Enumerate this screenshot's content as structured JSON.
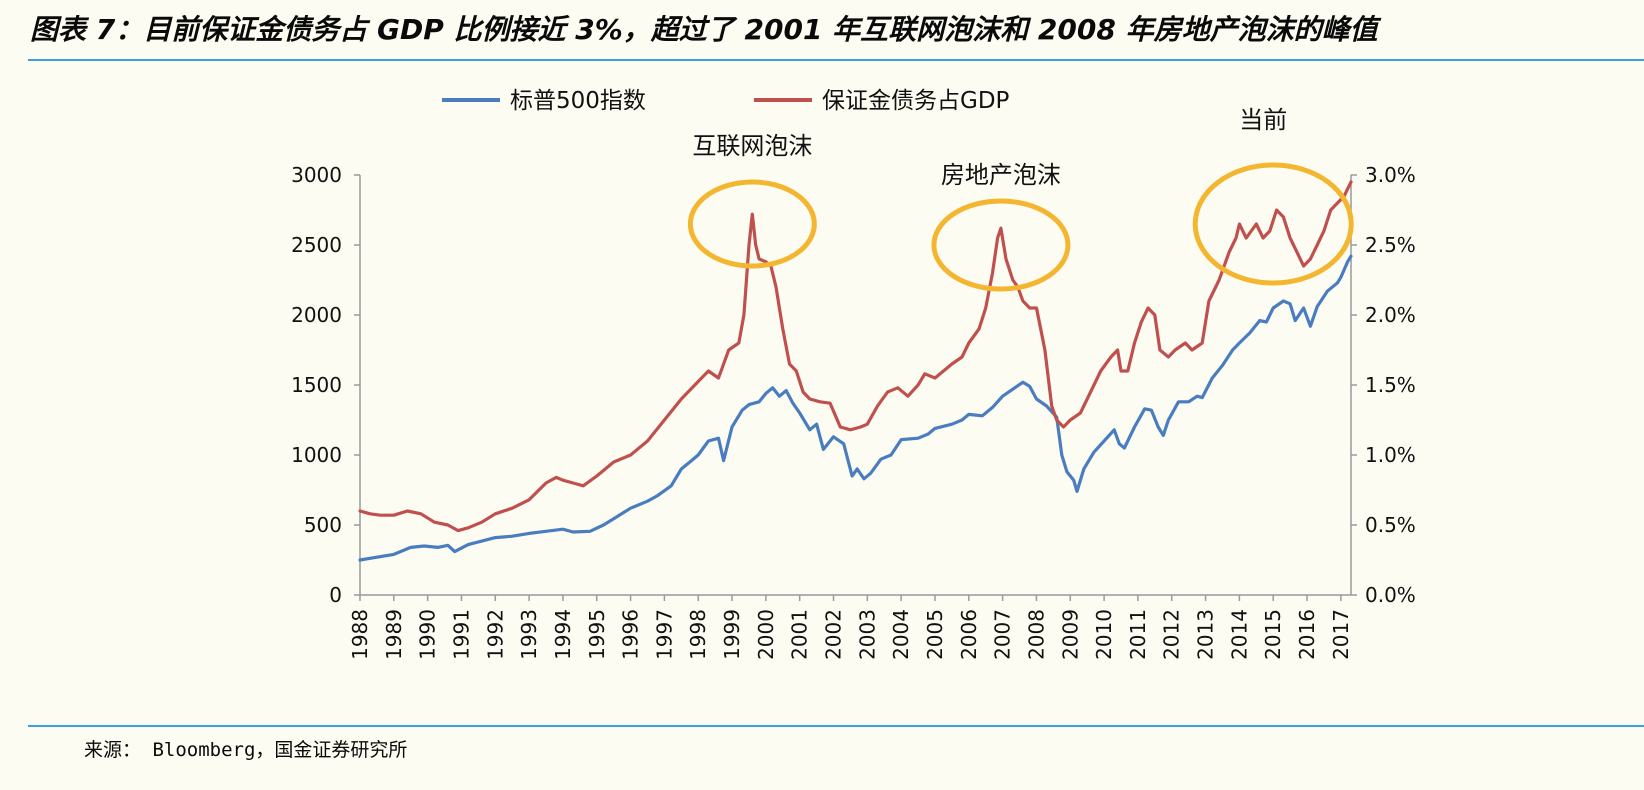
{
  "figure": {
    "title": "图表 7：目前保证金债务占 GDP 比例接近 3%，超过了 2001 年互联网泡沫和 2008 年房地产泡沫的峰值",
    "source": "来源： Bloomberg，国金证券研究所"
  },
  "colors": {
    "sp500": "#4a7dc0",
    "margin": "#c0504d",
    "highlight_ring": "#f4b630",
    "rule": "#3fa0d8",
    "axis": "#9a9a9a",
    "background": "#fdfcf2"
  },
  "chart_data": {
    "type": "line",
    "title": "",
    "xlabel": "",
    "ylabel_left": "",
    "ylabel_right": "",
    "ylim_left": [
      0,
      3000
    ],
    "ylim_right": [
      0,
      0.03
    ],
    "xlim": [
      1988,
      2017.3
    ],
    "left_ticks": [
      "0",
      "500",
      "1000",
      "1500",
      "2000",
      "2500",
      "3000"
    ],
    "right_ticks": [
      "0.0%",
      "0.5%",
      "1.0%",
      "1.5%",
      "2.0%",
      "2.5%",
      "3.0%"
    ],
    "x_ticks": [
      "1988",
      "1989",
      "1990",
      "1991",
      "1992",
      "1993",
      "1994",
      "1995",
      "1996",
      "1997",
      "1998",
      "1999",
      "2000",
      "2001",
      "2002",
      "2003",
      "2004",
      "2005",
      "2006",
      "2007",
      "2008",
      "2009",
      "2010",
      "2011",
      "2012",
      "2013",
      "2014",
      "2015",
      "2016",
      "2017"
    ],
    "legend_position": "top",
    "grid": false,
    "series": [
      {
        "name": "标普500指数",
        "axis": "left",
        "points": [
          [
            1988.0,
            250
          ],
          [
            1988.5,
            270
          ],
          [
            1989.0,
            290
          ],
          [
            1989.5,
            340
          ],
          [
            1989.9,
            350
          ],
          [
            1990.3,
            340
          ],
          [
            1990.6,
            355
          ],
          [
            1990.8,
            310
          ],
          [
            1991.2,
            360
          ],
          [
            1991.6,
            385
          ],
          [
            1992.0,
            410
          ],
          [
            1992.5,
            420
          ],
          [
            1993.0,
            440
          ],
          [
            1993.5,
            455
          ],
          [
            1994.0,
            470
          ],
          [
            1994.3,
            450
          ],
          [
            1994.8,
            455
          ],
          [
            1995.2,
            500
          ],
          [
            1995.6,
            560
          ],
          [
            1996.0,
            620
          ],
          [
            1996.5,
            670
          ],
          [
            1996.8,
            710
          ],
          [
            1997.2,
            780
          ],
          [
            1997.5,
            900
          ],
          [
            1997.8,
            960
          ],
          [
            1998.0,
            1000
          ],
          [
            1998.3,
            1100
          ],
          [
            1998.6,
            1120
          ],
          [
            1998.75,
            960
          ],
          [
            1999.0,
            1200
          ],
          [
            1999.3,
            1320
          ],
          [
            1999.5,
            1360
          ],
          [
            1999.8,
            1380
          ],
          [
            2000.0,
            1440
          ],
          [
            2000.2,
            1480
          ],
          [
            2000.4,
            1420
          ],
          [
            2000.6,
            1460
          ],
          [
            2000.8,
            1370
          ],
          [
            2001.0,
            1300
          ],
          [
            2001.3,
            1180
          ],
          [
            2001.5,
            1220
          ],
          [
            2001.7,
            1040
          ],
          [
            2002.0,
            1130
          ],
          [
            2002.3,
            1080
          ],
          [
            2002.55,
            850
          ],
          [
            2002.7,
            900
          ],
          [
            2002.9,
            830
          ],
          [
            2003.1,
            870
          ],
          [
            2003.4,
            970
          ],
          [
            2003.7,
            1000
          ],
          [
            2004.0,
            1110
          ],
          [
            2004.5,
            1120
          ],
          [
            2004.8,
            1150
          ],
          [
            2005.0,
            1190
          ],
          [
            2005.5,
            1220
          ],
          [
            2005.8,
            1250
          ],
          [
            2006.0,
            1290
          ],
          [
            2006.4,
            1280
          ],
          [
            2006.7,
            1340
          ],
          [
            2007.0,
            1420
          ],
          [
            2007.3,
            1470
          ],
          [
            2007.6,
            1520
          ],
          [
            2007.8,
            1490
          ],
          [
            2008.0,
            1400
          ],
          [
            2008.3,
            1350
          ],
          [
            2008.6,
            1270
          ],
          [
            2008.75,
            1000
          ],
          [
            2008.9,
            880
          ],
          [
            2009.1,
            820
          ],
          [
            2009.2,
            740
          ],
          [
            2009.4,
            900
          ],
          [
            2009.7,
            1020
          ],
          [
            2010.0,
            1100
          ],
          [
            2010.3,
            1180
          ],
          [
            2010.45,
            1080
          ],
          [
            2010.6,
            1050
          ],
          [
            2010.9,
            1200
          ],
          [
            2011.2,
            1330
          ],
          [
            2011.4,
            1320
          ],
          [
            2011.6,
            1200
          ],
          [
            2011.75,
            1140
          ],
          [
            2011.9,
            1250
          ],
          [
            2012.2,
            1380
          ],
          [
            2012.5,
            1380
          ],
          [
            2012.75,
            1420
          ],
          [
            2012.9,
            1410
          ],
          [
            2013.2,
            1550
          ],
          [
            2013.5,
            1640
          ],
          [
            2013.8,
            1750
          ],
          [
            2014.0,
            1800
          ],
          [
            2014.3,
            1870
          ],
          [
            2014.6,
            1960
          ],
          [
            2014.8,
            1950
          ],
          [
            2015.0,
            2050
          ],
          [
            2015.3,
            2100
          ],
          [
            2015.5,
            2080
          ],
          [
            2015.65,
            1960
          ],
          [
            2015.9,
            2050
          ],
          [
            2016.1,
            1920
          ],
          [
            2016.3,
            2060
          ],
          [
            2016.6,
            2170
          ],
          [
            2016.9,
            2230
          ],
          [
            2017.0,
            2270
          ],
          [
            2017.2,
            2380
          ],
          [
            2017.3,
            2420
          ]
        ]
      },
      {
        "name": "保证金债务占GDP",
        "axis": "right",
        "points": [
          [
            1988.0,
            0.006
          ],
          [
            1988.3,
            0.0058
          ],
          [
            1988.6,
            0.0057
          ],
          [
            1989.0,
            0.0057
          ],
          [
            1989.4,
            0.006
          ],
          [
            1989.8,
            0.0058
          ],
          [
            1990.2,
            0.0052
          ],
          [
            1990.6,
            0.005
          ],
          [
            1990.9,
            0.0046
          ],
          [
            1991.2,
            0.0048
          ],
          [
            1991.6,
            0.0052
          ],
          [
            1992.0,
            0.0058
          ],
          [
            1992.5,
            0.0062
          ],
          [
            1993.0,
            0.0068
          ],
          [
            1993.5,
            0.008
          ],
          [
            1993.8,
            0.0084
          ],
          [
            1994.0,
            0.0082
          ],
          [
            1994.3,
            0.008
          ],
          [
            1994.6,
            0.0078
          ],
          [
            1995.0,
            0.0085
          ],
          [
            1995.5,
            0.0095
          ],
          [
            1996.0,
            0.01
          ],
          [
            1996.5,
            0.011
          ],
          [
            1997.0,
            0.0125
          ],
          [
            1997.5,
            0.014
          ],
          [
            1997.9,
            0.015
          ],
          [
            1998.3,
            0.016
          ],
          [
            1998.6,
            0.0155
          ],
          [
            1998.9,
            0.0175
          ],
          [
            1999.2,
            0.018
          ],
          [
            1999.35,
            0.02
          ],
          [
            1999.5,
            0.025
          ],
          [
            1999.6,
            0.0272
          ],
          [
            1999.7,
            0.025
          ],
          [
            1999.8,
            0.024
          ],
          [
            2000.0,
            0.0238
          ],
          [
            2000.15,
            0.0235
          ],
          [
            2000.3,
            0.022
          ],
          [
            2000.5,
            0.019
          ],
          [
            2000.7,
            0.0165
          ],
          [
            2000.9,
            0.016
          ],
          [
            2001.1,
            0.0145
          ],
          [
            2001.3,
            0.014
          ],
          [
            2001.6,
            0.0138
          ],
          [
            2001.9,
            0.0137
          ],
          [
            2002.2,
            0.012
          ],
          [
            2002.5,
            0.0118
          ],
          [
            2002.8,
            0.012
          ],
          [
            2003.0,
            0.0122
          ],
          [
            2003.3,
            0.0135
          ],
          [
            2003.6,
            0.0145
          ],
          [
            2003.9,
            0.0148
          ],
          [
            2004.2,
            0.0142
          ],
          [
            2004.5,
            0.015
          ],
          [
            2004.7,
            0.0158
          ],
          [
            2005.0,
            0.0155
          ],
          [
            2005.5,
            0.0165
          ],
          [
            2005.8,
            0.017
          ],
          [
            2006.0,
            0.018
          ],
          [
            2006.3,
            0.019
          ],
          [
            2006.5,
            0.0205
          ],
          [
            2006.7,
            0.023
          ],
          [
            2006.85,
            0.0255
          ],
          [
            2006.95,
            0.0262
          ],
          [
            2007.1,
            0.024
          ],
          [
            2007.3,
            0.0225
          ],
          [
            2007.45,
            0.022
          ],
          [
            2007.6,
            0.021
          ],
          [
            2007.8,
            0.0205
          ],
          [
            2008.0,
            0.0205
          ],
          [
            2008.25,
            0.0175
          ],
          [
            2008.45,
            0.0135
          ],
          [
            2008.6,
            0.0125
          ],
          [
            2008.8,
            0.012
          ],
          [
            2009.0,
            0.0125
          ],
          [
            2009.3,
            0.013
          ],
          [
            2009.6,
            0.0145
          ],
          [
            2009.9,
            0.016
          ],
          [
            2010.2,
            0.017
          ],
          [
            2010.4,
            0.0175
          ],
          [
            2010.5,
            0.016
          ],
          [
            2010.7,
            0.016
          ],
          [
            2010.9,
            0.018
          ],
          [
            2011.1,
            0.0195
          ],
          [
            2011.3,
            0.0205
          ],
          [
            2011.5,
            0.02
          ],
          [
            2011.65,
            0.0175
          ],
          [
            2011.9,
            0.017
          ],
          [
            2012.1,
            0.0175
          ],
          [
            2012.4,
            0.018
          ],
          [
            2012.6,
            0.0175
          ],
          [
            2012.9,
            0.018
          ],
          [
            2013.1,
            0.021
          ],
          [
            2013.4,
            0.0225
          ],
          [
            2013.7,
            0.0245
          ],
          [
            2013.9,
            0.0255
          ],
          [
            2014.0,
            0.0265
          ],
          [
            2014.2,
            0.0255
          ],
          [
            2014.5,
            0.0265
          ],
          [
            2014.7,
            0.0255
          ],
          [
            2014.9,
            0.026
          ],
          [
            2015.1,
            0.0275
          ],
          [
            2015.3,
            0.027
          ],
          [
            2015.5,
            0.0255
          ],
          [
            2015.7,
            0.0245
          ],
          [
            2015.9,
            0.0235
          ],
          [
            2016.1,
            0.024
          ],
          [
            2016.3,
            0.025
          ],
          [
            2016.5,
            0.026
          ],
          [
            2016.7,
            0.0275
          ],
          [
            2016.9,
            0.028
          ],
          [
            2017.1,
            0.0285
          ],
          [
            2017.3,
            0.0295
          ]
        ]
      }
    ],
    "annotations": [
      {
        "label": "互联网泡沫",
        "x": 1999.6,
        "y": 0.0265
      },
      {
        "label": "房地产泡沫",
        "x": 2006.95,
        "y": 0.025
      },
      {
        "label": "当前",
        "x": 2015.0,
        "y": 0.0265
      }
    ]
  }
}
